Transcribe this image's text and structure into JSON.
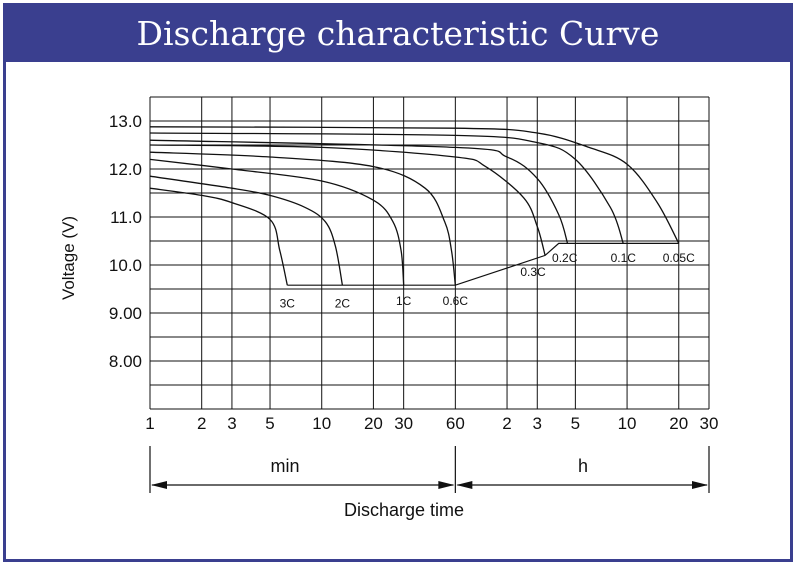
{
  "chart_data": {
    "type": "line",
    "title": "Discharge characteristic Curve",
    "xlabel": "Discharge time",
    "ylabel": "Voltage (V)",
    "x_scale": "log",
    "x_unit_minutes_per_hour": 60,
    "y_ticks": [
      "13.0",
      "12.0",
      "11.0",
      "10.0",
      "9.00",
      "8.00"
    ],
    "y_tick_values": [
      13,
      12,
      11,
      10,
      9,
      8
    ],
    "ylim": [
      7.0,
      13.5
    ],
    "x_ticks_min": [
      "1",
      "2",
      "3",
      "5",
      "10",
      "20",
      "30",
      "60"
    ],
    "x_tick_min_values": [
      1,
      2,
      3,
      5,
      10,
      20,
      30,
      60
    ],
    "x_ticks_h": [
      "2",
      "3",
      "5",
      "10",
      "20",
      "30"
    ],
    "x_tick_h_values": [
      2,
      3,
      5,
      10,
      20,
      30
    ],
    "unit_min": "min",
    "unit_h": "h",
    "grid": true,
    "series": [
      {
        "name": "3C",
        "points": [
          [
            1,
            11.6
          ],
          [
            2,
            11.45
          ],
          [
            3,
            11.3
          ],
          [
            5,
            10.95
          ],
          [
            5.7,
            10.3
          ],
          [
            6.3,
            9.58
          ]
        ]
      },
      {
        "name": "2C",
        "points": [
          [
            1,
            11.85
          ],
          [
            3,
            11.6
          ],
          [
            5,
            11.45
          ],
          [
            8,
            11.2
          ],
          [
            10.5,
            10.9
          ],
          [
            12,
            10.4
          ],
          [
            13.2,
            9.58
          ]
        ]
      },
      {
        "name": "1C",
        "points": [
          [
            1,
            12.2
          ],
          [
            3,
            12.0
          ],
          [
            10,
            11.75
          ],
          [
            20,
            11.35
          ],
          [
            26,
            10.9
          ],
          [
            29,
            10.3
          ],
          [
            30,
            9.58
          ]
        ]
      },
      {
        "name": "0.6C",
        "points": [
          [
            1,
            12.35
          ],
          [
            5,
            12.25
          ],
          [
            20,
            12.05
          ],
          [
            40,
            11.6
          ],
          [
            52,
            10.9
          ],
          [
            57,
            10.3
          ],
          [
            60,
            9.58
          ]
        ]
      },
      {
        "name": "0.3C",
        "points": [
          [
            1,
            12.5
          ],
          [
            10,
            12.45
          ],
          [
            60,
            12.25
          ],
          [
            90,
            12.05
          ],
          [
            150,
            11.4
          ],
          [
            180,
            10.8
          ],
          [
            200,
            10.2
          ]
        ]
      },
      {
        "name": "0.2C",
        "points": [
          [
            1,
            12.6
          ],
          [
            60,
            12.45
          ],
          [
            120,
            12.25
          ],
          [
            180,
            11.8
          ],
          [
            240,
            11.05
          ],
          [
            270,
            10.45
          ]
        ]
      },
      {
        "name": "0.1C",
        "points": [
          [
            1,
            12.75
          ],
          [
            60,
            12.7
          ],
          [
            180,
            12.55
          ],
          [
            300,
            12.2
          ],
          [
            480,
            11.2
          ],
          [
            570,
            10.45
          ]
        ]
      },
      {
        "name": "0.05C",
        "points": [
          [
            1,
            12.88
          ],
          [
            60,
            12.85
          ],
          [
            180,
            12.75
          ],
          [
            360,
            12.45
          ],
          [
            600,
            12.1
          ],
          [
            900,
            11.3
          ],
          [
            1200,
            10.45
          ]
        ]
      }
    ],
    "cutoff_line": {
      "points": [
        [
          6.3,
          9.58
        ],
        [
          60,
          9.58
        ],
        [
          200,
          10.2
        ],
        [
          240,
          10.45
        ],
        [
          1200,
          10.45
        ]
      ]
    },
    "curve_labels": [
      {
        "text": "3C",
        "x": 6.3,
        "y": 9.2
      },
      {
        "text": "2C",
        "x": 13.2,
        "y": 9.2
      },
      {
        "text": "1C",
        "x": 30,
        "y": 9.25
      },
      {
        "text": "0.6C",
        "x": 60,
        "y": 9.25
      },
      {
        "text": "0.3C",
        "x": 170,
        "y": 9.85
      },
      {
        "text": "0.2C",
        "x": 260,
        "y": 10.15
      },
      {
        "text": "0.1C",
        "x": 570,
        "y": 10.15
      },
      {
        "text": "0.05C",
        "x": 1200,
        "y": 10.15
      }
    ]
  }
}
